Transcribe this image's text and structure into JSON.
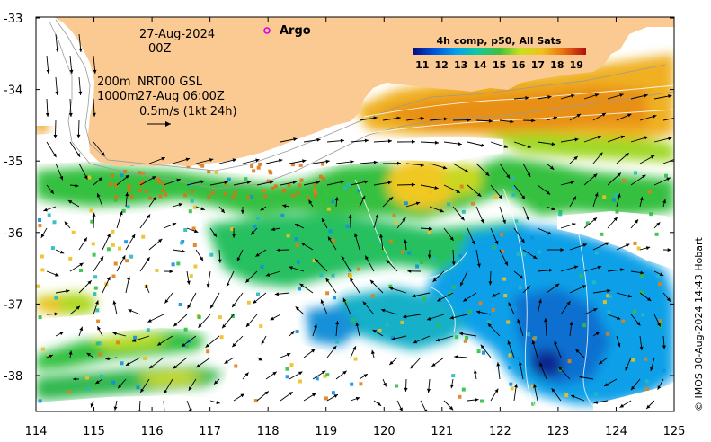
{
  "map": {
    "date_line": "27-Aug-2024",
    "time_line": "00Z",
    "depth_label_1": "200m",
    "depth_label_2": "1000m",
    "product": "NRT00 GSL",
    "product_time": "27-Aug 06:00Z",
    "speed_scale": "0.5m/s (1kt 24h)",
    "argo_label": "Argo",
    "credit": "© IMOS 30-Aug-2024 14:43 Hobart",
    "x_ticks": [
      "114",
      "115",
      "116",
      "117",
      "118",
      "119",
      "120",
      "121",
      "122",
      "123",
      "124",
      "125"
    ],
    "y_ticks": [
      "-33",
      "-34",
      "-35",
      "-36",
      "-37",
      "-38"
    ]
  },
  "colorbar": {
    "title": "4h comp, p50, All Sats",
    "labels": [
      "11",
      "12",
      "13",
      "14",
      "15",
      "16",
      "17",
      "18",
      "19"
    ],
    "range": [
      10.5,
      19.5
    ]
  },
  "colors": {
    "land": "#fbc992",
    "argo_marker": "#e000e0"
  }
}
